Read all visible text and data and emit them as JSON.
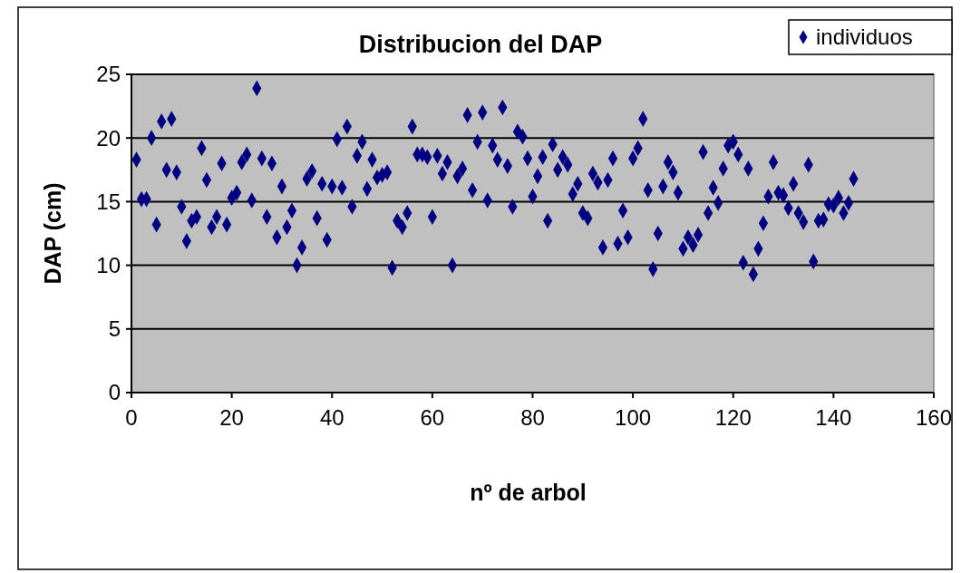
{
  "chart_data": {
    "type": "scatter",
    "title": "Distribucion del DAP",
    "xlabel": "nº de arbol",
    "ylabel": "DAP (cm)",
    "x": [
      1,
      2,
      3,
      4,
      5,
      6,
      7,
      8,
      9,
      10,
      11,
      12,
      13,
      14,
      15,
      16,
      17,
      18,
      19,
      20,
      21,
      22,
      23,
      24,
      25,
      26,
      27,
      28,
      29,
      30,
      31,
      32,
      33,
      34,
      35,
      36,
      37,
      38,
      39,
      40,
      41,
      42,
      43,
      44,
      45,
      46,
      47,
      48,
      49,
      50,
      51,
      52,
      53,
      54,
      55,
      56,
      57,
      58,
      59,
      60,
      61,
      62,
      63,
      64,
      65,
      66,
      67,
      68,
      69,
      70,
      71,
      72,
      73,
      74,
      75,
      76,
      77,
      78,
      79,
      80,
      81,
      82,
      83,
      84,
      85,
      86,
      87,
      88,
      89,
      90,
      91,
      92,
      93,
      94,
      95,
      96,
      97,
      98,
      99,
      100,
      101,
      102,
      103,
      104,
      105,
      106,
      107,
      108,
      109,
      110,
      111,
      112,
      113,
      114,
      115,
      116,
      117,
      118,
      119,
      120,
      121,
      122,
      123,
      124,
      125,
      126,
      127,
      128,
      129,
      130,
      131,
      132,
      133,
      134,
      135,
      136,
      137,
      138,
      139,
      140,
      141,
      142,
      143,
      144
    ],
    "series": [
      {
        "name": "individuos",
        "color": "#000080",
        "values": [
          18.3,
          15.2,
          15.2,
          20.0,
          13.2,
          21.3,
          17.5,
          21.5,
          17.3,
          14.6,
          11.9,
          13.5,
          13.8,
          19.2,
          16.7,
          13.0,
          13.8,
          18.0,
          13.2,
          15.3,
          15.7,
          18.1,
          18.7,
          15.1,
          23.9,
          18.4,
          13.8,
          18.0,
          12.2,
          16.2,
          13.0,
          14.3,
          10.0,
          11.4,
          16.8,
          17.4,
          13.7,
          16.4,
          12.0,
          16.2,
          19.9,
          16.1,
          20.9,
          14.6,
          18.6,
          19.7,
          16.0,
          18.3,
          16.9,
          17.1,
          17.3,
          9.8,
          13.5,
          13.0,
          14.1,
          20.9,
          18.7,
          18.7,
          18.5,
          13.8,
          18.6,
          17.2,
          18.1,
          10.0,
          17.0,
          17.6,
          21.8,
          15.9,
          19.7,
          22.0,
          15.1,
          19.4,
          18.3,
          22.4,
          17.8,
          14.6,
          20.5,
          20.1,
          18.4,
          15.4,
          17.0,
          18.5,
          13.5,
          19.5,
          17.5,
          18.5,
          17.9,
          15.6,
          16.4,
          14.1,
          13.7,
          17.2,
          16.5,
          11.4,
          16.7,
          18.4,
          11.7,
          14.3,
          12.2,
          18.4,
          19.2,
          21.5,
          15.9,
          9.7,
          12.5,
          16.2,
          18.1,
          17.3,
          15.7,
          11.3,
          12.2,
          11.6,
          12.4,
          18.9,
          14.1,
          16.1,
          14.9,
          17.6,
          19.4,
          19.7,
          18.7,
          10.2,
          17.6,
          9.3,
          11.3,
          13.3,
          15.4,
          18.1,
          15.7,
          15.5,
          14.5,
          16.4,
          14.1,
          13.4,
          17.9,
          10.3,
          13.5,
          13.6,
          14.8,
          14.7,
          15.3,
          14.1,
          14.9,
          16.8
        ]
      }
    ],
    "xlim": [
      0,
      160
    ],
    "xticks": [
      0,
      20,
      40,
      60,
      80,
      100,
      120,
      140,
      160
    ],
    "ylim": [
      0,
      25
    ],
    "yticks": [
      0,
      5,
      10,
      15,
      20,
      25
    ],
    "grid": "y",
    "legend": "top right",
    "marker": "diamond"
  }
}
